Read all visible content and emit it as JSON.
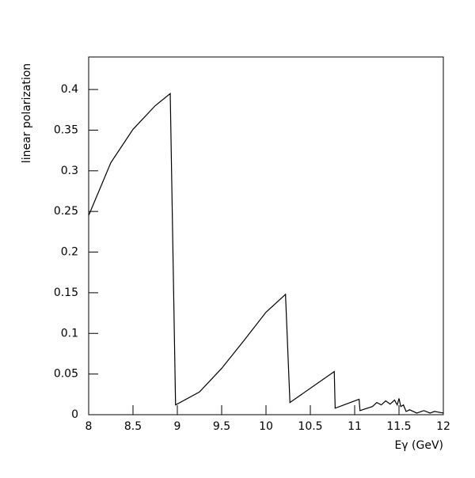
{
  "chart_data": {
    "type": "line",
    "xlabel": "Eγ (GeV)",
    "ylabel": "linear polarization",
    "x": [
      8,
      8.25,
      8.5,
      8.75,
      8.92,
      8.98,
      9.25,
      9.5,
      9.75,
      10,
      10.22,
      10.27,
      10.77,
      10.78,
      11.05,
      11.06,
      11.2,
      11.25,
      11.3,
      11.35,
      11.4,
      11.45,
      11.48,
      11.5,
      11.52,
      11.55,
      11.58,
      11.62,
      11.7,
      11.78,
      11.85,
      11.9,
      12
    ],
    "series": [
      {
        "color": "#000000",
        "values": [
          0.245,
          0.31,
          0.351,
          0.38,
          0.395,
          0.012,
          0.028,
          0.057,
          0.091,
          0.126,
          0.148,
          0.015,
          0.053,
          0.008,
          0.019,
          0.005,
          0.01,
          0.015,
          0.012,
          0.017,
          0.013,
          0.018,
          0.012,
          0.02,
          0.01,
          0.012,
          0.004,
          0.006,
          0.002,
          0.005,
          0.002,
          0.004,
          0.002
        ]
      }
    ],
    "xlim": [
      8,
      12
    ],
    "xticks": [
      8,
      8.5,
      9,
      9.5,
      10,
      10.5,
      11,
      11.5,
      12
    ],
    "ylim": [
      0,
      0.44
    ],
    "yticks": [
      0,
      0.05,
      0.1,
      0.15,
      0.2,
      0.25,
      0.3,
      0.35,
      0.4
    ]
  }
}
